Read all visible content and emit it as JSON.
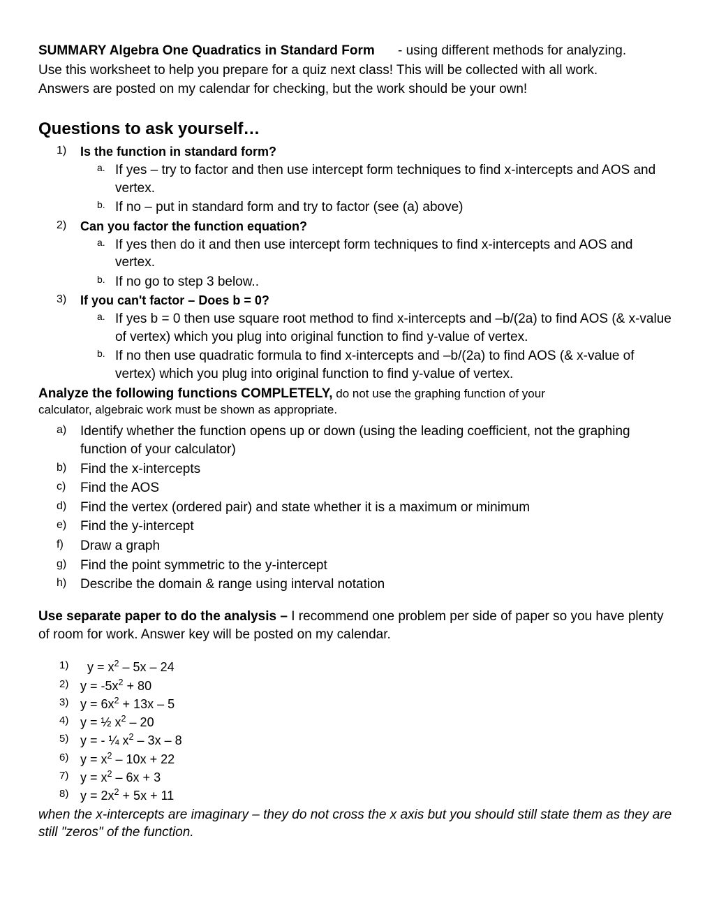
{
  "intro": {
    "title": "SUMMARY Algebra One Quadratics in Standard Form",
    "subtitle": "- using different methods for analyzing.",
    "line2": "Use this worksheet to help you prepare for a quiz next class! This will be collected with all work.",
    "line3": "Answers are posted on my calendar for checking, but the work should be your own!"
  },
  "questions_heading": "Questions to ask yourself…",
  "questions": [
    {
      "marker": "1)",
      "text": "Is the function in standard form?",
      "subs": [
        {
          "marker": "a.",
          "text": " If yes – try to factor and then use intercept form techniques to find x-intercepts and AOS and vertex."
        },
        {
          "marker": "b.",
          "text": "If no – put in standard form and try to factor (see (a) above)"
        }
      ]
    },
    {
      "marker": "2)",
      "text": "Can you factor the function equation?",
      "subs": [
        {
          "marker": "a.",
          "text": "If yes then do it and then use intercept form techniques to find x-intercepts and AOS and vertex."
        },
        {
          "marker": "b.",
          "text": "If no go to step 3 below.."
        }
      ]
    },
    {
      "marker": "3)",
      "text": "If you can't factor – Does b = 0?",
      "subs": [
        {
          "marker": "a.",
          "text": "If yes b = 0 then use square root method to find x-intercepts and –b/(2a) to find AOS (& x-value of vertex) which you plug into original function to find y-value of vertex."
        },
        {
          "marker": "b.",
          "text": "If no then use quadratic formula to find x-intercepts and –b/(2a) to find AOS (& x-value of vertex) which you plug into original function to find y-value of vertex."
        }
      ]
    }
  ],
  "analyze": {
    "heading": "Analyze the following functions COMPLETELY,",
    "note": " do not use the graphing function of your",
    "sub": "calculator, algebraic work must be shown as appropriate.",
    "tasks": [
      {
        "marker": "a)",
        "text": "Identify whether the function opens up or down (using the leading coefficient, not the graphing function of your calculator)"
      },
      {
        "marker": "b)",
        "text": "Find the x-intercepts"
      },
      {
        "marker": "c)",
        "text": "Find the AOS"
      },
      {
        "marker": "d)",
        "text": "Find the vertex (ordered pair) and state whether it is a maximum or minimum"
      },
      {
        "marker": "e)",
        "text": "Find the y-intercept"
      },
      {
        "marker": "f)",
        "text": "Draw a graph"
      },
      {
        "marker": "g)",
        "text": "Find the point symmetric to the y-intercept"
      },
      {
        "marker": "h)",
        "text": "Describe the domain & range using interval notation"
      }
    ]
  },
  "separate": {
    "title": "Use separate paper to do the analysis – ",
    "text": "I recommend one problem per side of paper so you have plenty of room for work. Answer key will be posted on my calendar."
  },
  "equations": [
    {
      "marker": "1)",
      "html": "y = x<sup>2</sup> – 5x – 24"
    },
    {
      "marker": "2)",
      "html": "y = -5x<sup>2</sup> + 80"
    },
    {
      "marker": "3)",
      "html": "y = 6x<sup>2</sup> + 13x – 5"
    },
    {
      "marker": "4)",
      "html": "y = ½ x<sup>2</sup> – 20"
    },
    {
      "marker": "5)",
      "html": "y = - ¼ x<sup>2</sup> – 3x – 8"
    },
    {
      "marker": "6)",
      "html": "y = x<sup>2</sup> – 10x + 22"
    },
    {
      "marker": "7)",
      "html": "y = x<sup>2</sup> – 6x + 3"
    },
    {
      "marker": "8)",
      "html": "y = 2x<sup>2</sup> + 5x + 11"
    }
  ],
  "footnote": "when the x-intercepts are imaginary – they do not cross the x axis but you should still state them as they are still \"zeros\" of the function."
}
